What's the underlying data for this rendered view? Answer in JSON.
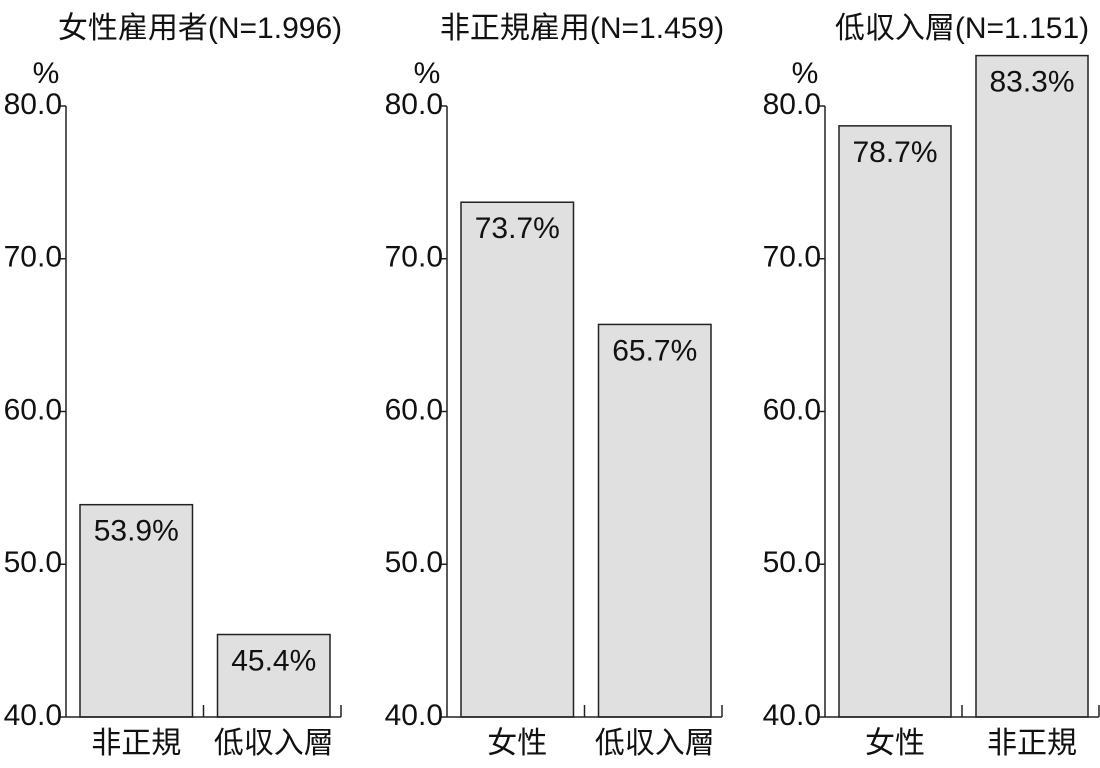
{
  "chart_data": [
    {
      "type": "bar",
      "title": "女性雇用者(N=1.996)",
      "y_label": "%",
      "categories": [
        "非正規",
        "低収入層"
      ],
      "values": [
        53.9,
        45.4
      ],
      "value_labels": [
        "53.9%",
        "45.4%"
      ],
      "color": "#e0e0e0",
      "ylim": [
        40,
        80
      ],
      "yticks": [
        {
          "value": 40,
          "label": "40.0"
        },
        {
          "value": 50,
          "label": "50.0"
        },
        {
          "value": 60,
          "label": "60.0"
        },
        {
          "value": 70,
          "label": "70.0"
        },
        {
          "value": 80,
          "label": "80.0"
        }
      ]
    },
    {
      "type": "bar",
      "title": "非正規雇用(N=1.459)",
      "y_label": "%",
      "categories": [
        "女性",
        "低収入層"
      ],
      "values": [
        73.7,
        65.7
      ],
      "value_labels": [
        "73.7%",
        "65.7%"
      ],
      "color": "#e0e0e0",
      "ylim": [
        40,
        80
      ],
      "yticks": [
        {
          "value": 40,
          "label": "40.0"
        },
        {
          "value": 50,
          "label": "50.0"
        },
        {
          "value": 60,
          "label": "60.0"
        },
        {
          "value": 70,
          "label": "70.0"
        },
        {
          "value": 80,
          "label": "80.0"
        }
      ]
    },
    {
      "type": "bar",
      "title": "低収入層(N=1.151)",
      "y_label": "%",
      "categories": [
        "女性",
        "非正規"
      ],
      "values": [
        78.7,
        83.3
      ],
      "value_labels": [
        "78.7%",
        "83.3%"
      ],
      "color": "#e0e0e0",
      "ylim": [
        40,
        80
      ],
      "yticks": [
        {
          "value": 40,
          "label": "40.0"
        },
        {
          "value": 50,
          "label": "50.0"
        },
        {
          "value": 60,
          "label": "60.0"
        },
        {
          "value": 70,
          "label": "70.0"
        },
        {
          "value": 80,
          "label": "80.0"
        }
      ]
    }
  ]
}
